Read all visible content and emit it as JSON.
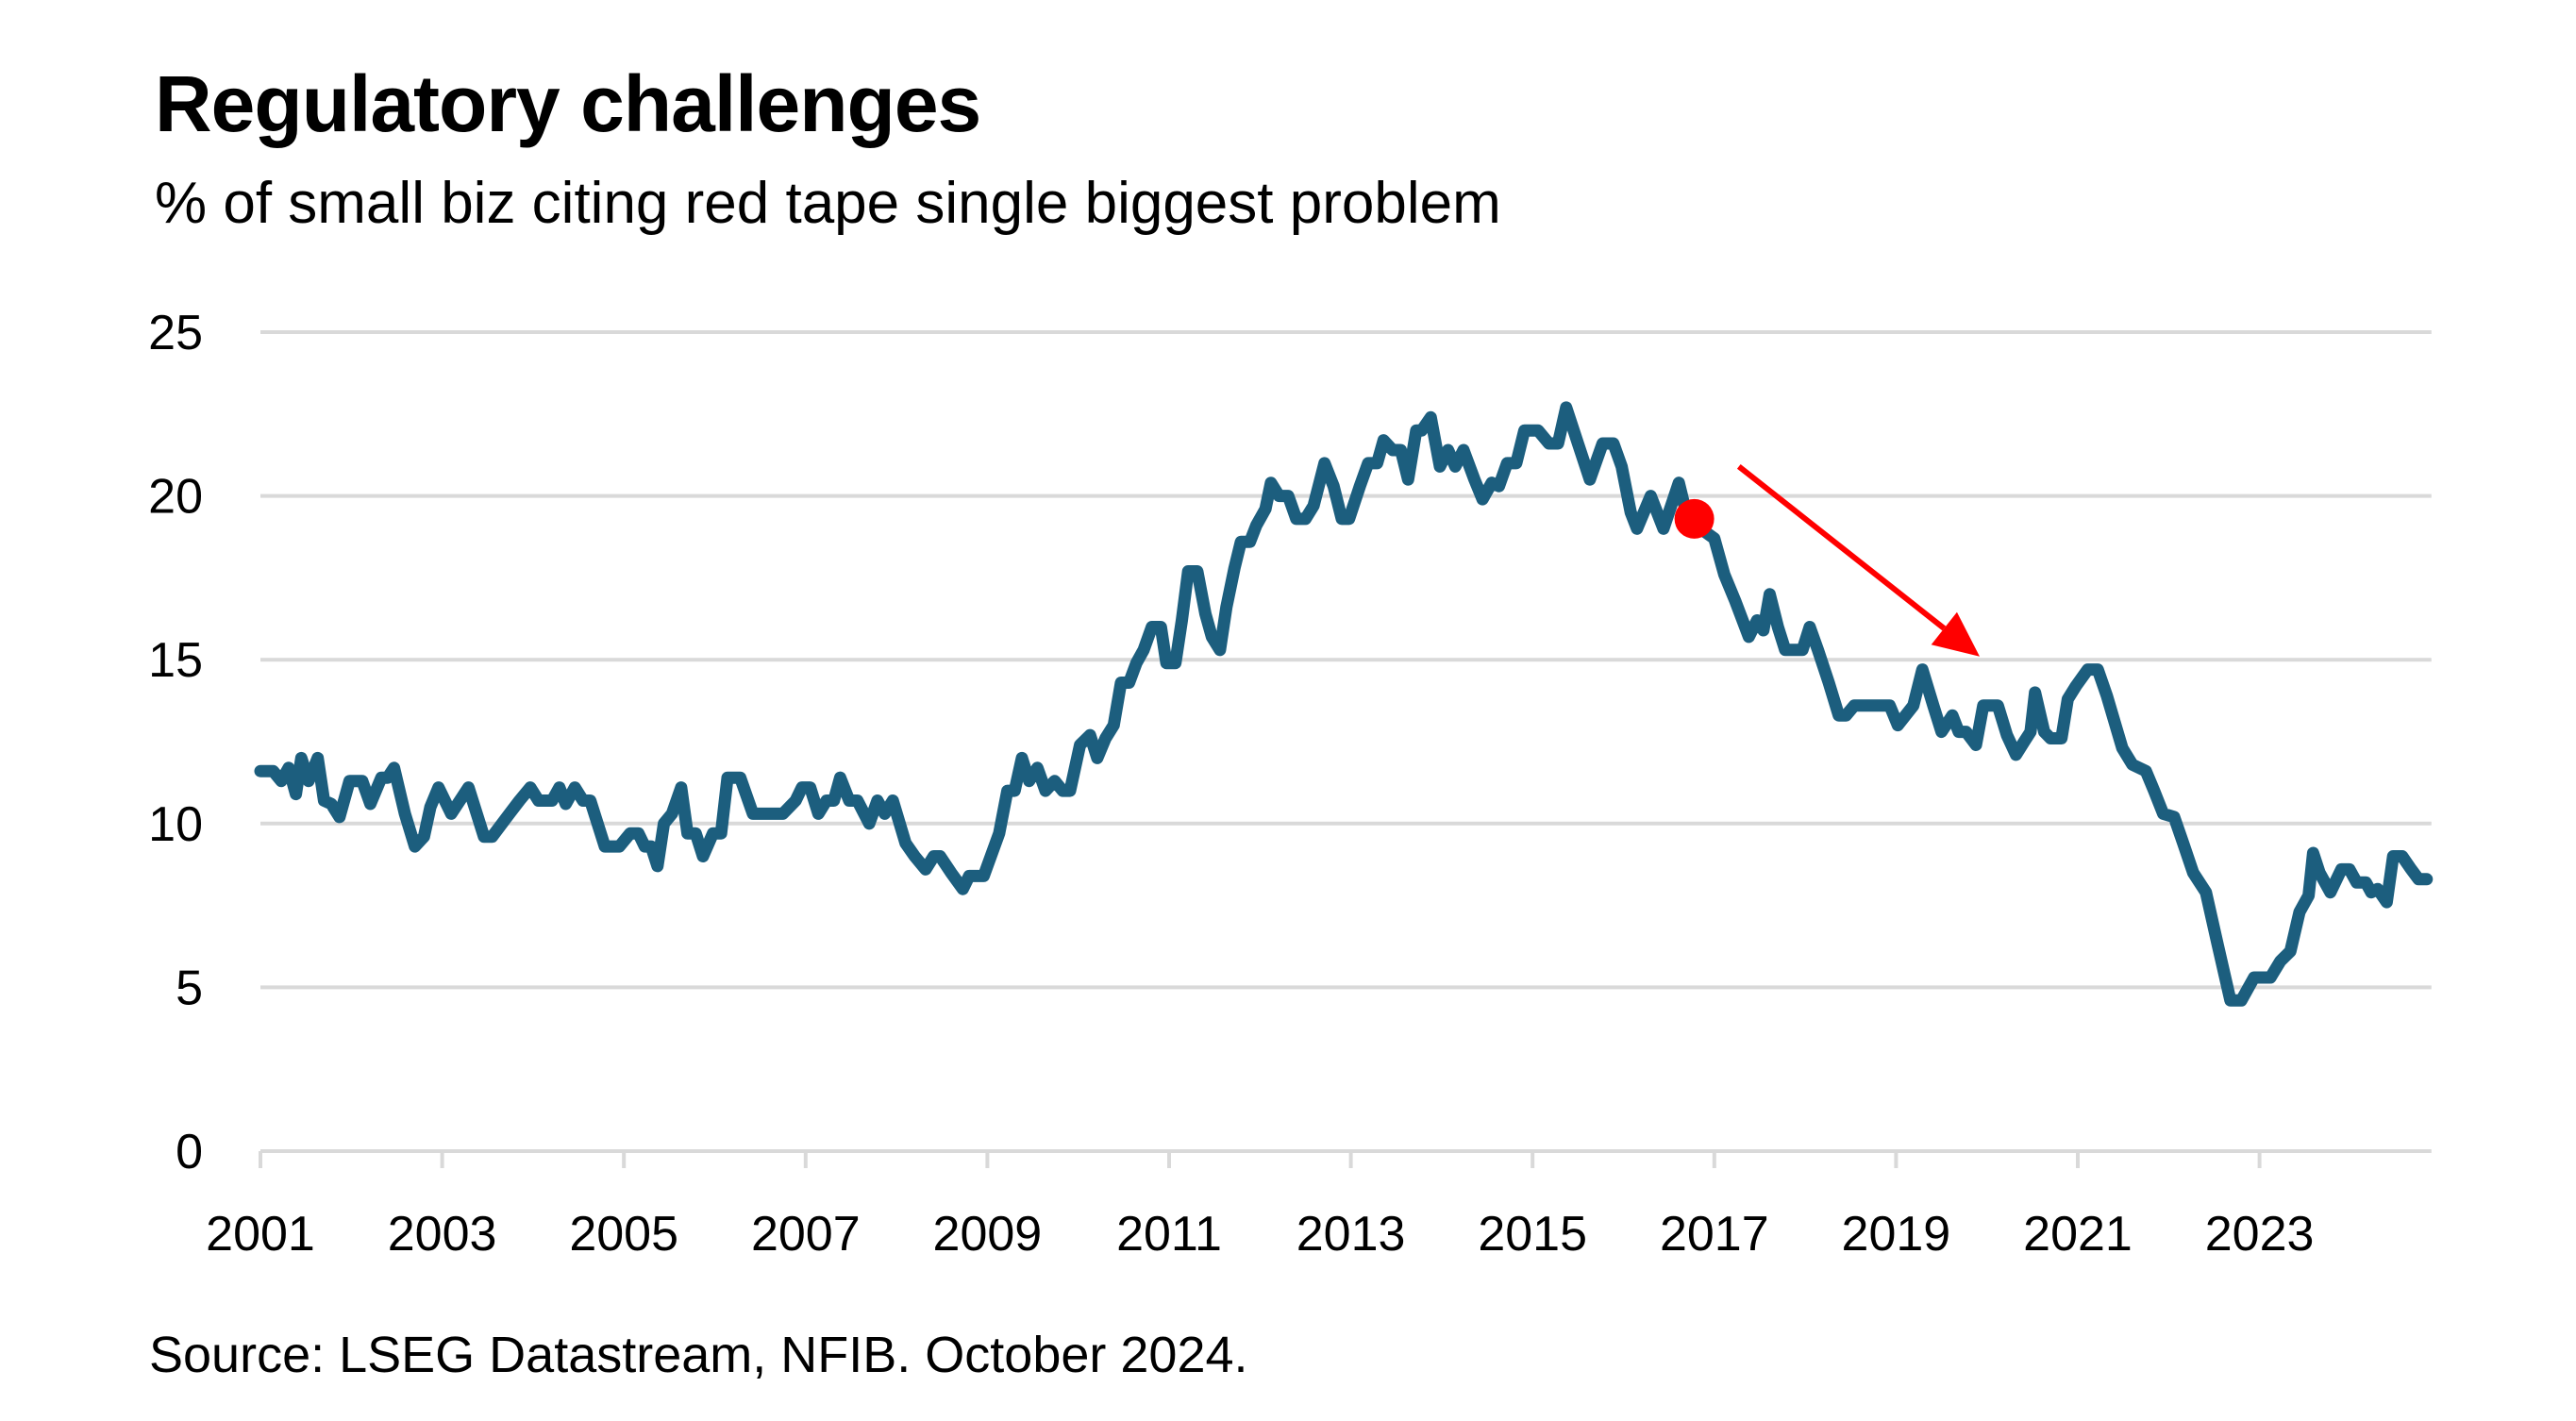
{
  "chart_data": {
    "type": "line",
    "title": "Regulatory challenges",
    "subtitle": "% of small biz citing red tape single biggest problem",
    "source": "Source: LSEG Datastream, NFIB. October 2024.",
    "xlabel": "",
    "ylabel": "",
    "xlim": [
      2001,
      2024.85
    ],
    "ylim": [
      0,
      25
    ],
    "yticks": [
      0,
      5,
      10,
      15,
      20,
      25
    ],
    "xticks": [
      2001,
      2003,
      2005,
      2007,
      2009,
      2011,
      2013,
      2015,
      2017,
      2019,
      2021,
      2023
    ],
    "xtick_labels": [
      "2001",
      "2003",
      "2005",
      "2007",
      "2009",
      "2011",
      "2013",
      "2015",
      "2017",
      "2019",
      "2021",
      "2023"
    ],
    "ytick_labels": [
      "0",
      "5",
      "10",
      "15",
      "20",
      "25"
    ],
    "grid": "horizontal",
    "colors": {
      "line": "#1c5e7e",
      "grid": "#d9d9d9",
      "annotation": "#ff0000"
    },
    "series": [
      {
        "name": "Red tape single biggest problem (%)",
        "points": [
          [
            2001.0,
            11.6
          ],
          [
            2001.14,
            11.6
          ],
          [
            2001.23,
            11.3
          ],
          [
            2001.31,
            11.7
          ],
          [
            2001.39,
            10.9
          ],
          [
            2001.45,
            12.0
          ],
          [
            2001.53,
            11.3
          ],
          [
            2001.63,
            12.0
          ],
          [
            2001.7,
            10.7
          ],
          [
            2001.78,
            10.6
          ],
          [
            2001.87,
            10.2
          ],
          [
            2001.98,
            11.3
          ],
          [
            2002.12,
            11.3
          ],
          [
            2002.21,
            10.6
          ],
          [
            2002.33,
            11.4
          ],
          [
            2002.4,
            11.4
          ],
          [
            2002.47,
            11.7
          ],
          [
            2002.59,
            10.3
          ],
          [
            2002.7,
            9.3
          ],
          [
            2002.8,
            9.6
          ],
          [
            2002.87,
            10.5
          ],
          [
            2002.96,
            11.1
          ],
          [
            2003.1,
            10.3
          ],
          [
            2003.29,
            11.1
          ],
          [
            2003.46,
            9.6
          ],
          [
            2003.55,
            9.6
          ],
          [
            2003.74,
            10.3
          ],
          [
            2003.85,
            10.7
          ],
          [
            2003.97,
            11.1
          ],
          [
            2004.06,
            10.7
          ],
          [
            2004.21,
            10.7
          ],
          [
            2004.29,
            11.1
          ],
          [
            2004.36,
            10.6
          ],
          [
            2004.46,
            11.1
          ],
          [
            2004.55,
            10.7
          ],
          [
            2004.63,
            10.7
          ],
          [
            2004.79,
            9.3
          ],
          [
            2004.95,
            9.3
          ],
          [
            2005.07,
            9.7
          ],
          [
            2005.16,
            9.7
          ],
          [
            2005.23,
            9.3
          ],
          [
            2005.3,
            9.3
          ],
          [
            2005.37,
            8.7
          ],
          [
            2005.44,
            10.0
          ],
          [
            2005.53,
            10.3
          ],
          [
            2005.63,
            11.1
          ],
          [
            2005.7,
            9.7
          ],
          [
            2005.79,
            9.7
          ],
          [
            2005.87,
            9.0
          ],
          [
            2005.98,
            9.7
          ],
          [
            2006.07,
            9.7
          ],
          [
            2006.14,
            11.4
          ],
          [
            2006.28,
            11.4
          ],
          [
            2006.42,
            10.3
          ],
          [
            2006.75,
            10.3
          ],
          [
            2006.89,
            10.7
          ],
          [
            2006.96,
            11.1
          ],
          [
            2007.05,
            11.1
          ],
          [
            2007.14,
            10.3
          ],
          [
            2007.23,
            10.7
          ],
          [
            2007.31,
            10.7
          ],
          [
            2007.38,
            11.4
          ],
          [
            2007.48,
            10.7
          ],
          [
            2007.57,
            10.7
          ],
          [
            2007.7,
            10.0
          ],
          [
            2007.79,
            10.7
          ],
          [
            2007.87,
            10.3
          ],
          [
            2007.96,
            10.7
          ],
          [
            2008.1,
            9.4
          ],
          [
            2008.2,
            9.0
          ],
          [
            2008.32,
            8.6
          ],
          [
            2008.41,
            9.0
          ],
          [
            2008.48,
            9.0
          ],
          [
            2008.6,
            8.5
          ],
          [
            2008.73,
            8.0
          ],
          [
            2008.8,
            8.4
          ],
          [
            2008.96,
            8.4
          ],
          [
            2009.13,
            9.7
          ],
          [
            2009.22,
            11.0
          ],
          [
            2009.3,
            11.0
          ],
          [
            2009.38,
            12.0
          ],
          [
            2009.46,
            11.3
          ],
          [
            2009.55,
            11.7
          ],
          [
            2009.64,
            11.0
          ],
          [
            2009.74,
            11.3
          ],
          [
            2009.83,
            11.0
          ],
          [
            2009.91,
            11.0
          ],
          [
            2010.02,
            12.4
          ],
          [
            2010.13,
            12.7
          ],
          [
            2010.21,
            12.0
          ],
          [
            2010.3,
            12.6
          ],
          [
            2010.39,
            13.0
          ],
          [
            2010.47,
            14.3
          ],
          [
            2010.56,
            14.3
          ],
          [
            2010.64,
            14.9
          ],
          [
            2010.72,
            15.3
          ],
          [
            2010.81,
            16.0
          ],
          [
            2010.91,
            16.0
          ],
          [
            2010.97,
            14.9
          ],
          [
            2011.07,
            14.9
          ],
          [
            2011.14,
            16.2
          ],
          [
            2011.21,
            17.7
          ],
          [
            2011.31,
            17.7
          ],
          [
            2011.4,
            16.4
          ],
          [
            2011.47,
            15.7
          ],
          [
            2011.56,
            15.3
          ],
          [
            2011.63,
            16.6
          ],
          [
            2011.72,
            17.8
          ],
          [
            2011.79,
            18.6
          ],
          [
            2011.89,
            18.6
          ],
          [
            2011.96,
            19.1
          ],
          [
            2012.06,
            19.6
          ],
          [
            2012.12,
            20.4
          ],
          [
            2012.21,
            20.0
          ],
          [
            2012.31,
            20.0
          ],
          [
            2012.4,
            19.3
          ],
          [
            2012.5,
            19.3
          ],
          [
            2012.59,
            19.7
          ],
          [
            2012.71,
            21.0
          ],
          [
            2012.81,
            20.3
          ],
          [
            2012.9,
            19.3
          ],
          [
            2012.98,
            19.3
          ],
          [
            2013.1,
            20.3
          ],
          [
            2013.19,
            21.0
          ],
          [
            2013.29,
            21.0
          ],
          [
            2013.36,
            21.7
          ],
          [
            2013.46,
            21.4
          ],
          [
            2013.55,
            21.4
          ],
          [
            2013.63,
            20.5
          ],
          [
            2013.72,
            22.0
          ],
          [
            2013.78,
            22.0
          ],
          [
            2013.88,
            22.4
          ],
          [
            2013.98,
            20.9
          ],
          [
            2014.07,
            21.4
          ],
          [
            2014.15,
            20.9
          ],
          [
            2014.24,
            21.4
          ],
          [
            2014.36,
            20.5
          ],
          [
            2014.45,
            19.9
          ],
          [
            2014.55,
            20.4
          ],
          [
            2014.63,
            20.3
          ],
          [
            2014.72,
            21.0
          ],
          [
            2014.82,
            21.0
          ],
          [
            2014.91,
            22.0
          ],
          [
            2015.06,
            22.0
          ],
          [
            2015.18,
            21.6
          ],
          [
            2015.28,
            21.6
          ],
          [
            2015.37,
            22.7
          ],
          [
            2015.5,
            21.6
          ],
          [
            2015.63,
            20.5
          ],
          [
            2015.77,
            21.6
          ],
          [
            2015.89,
            21.6
          ],
          [
            2015.98,
            20.9
          ],
          [
            2016.08,
            19.5
          ],
          [
            2016.15,
            19.0
          ],
          [
            2016.3,
            20.0
          ],
          [
            2016.44,
            19.0
          ],
          [
            2016.61,
            20.4
          ],
          [
            2016.68,
            19.6
          ],
          [
            2016.78,
            19.3
          ],
          [
            2016.9,
            18.9
          ],
          [
            2017.0,
            18.7
          ],
          [
            2017.11,
            17.6
          ],
          [
            2017.23,
            16.8
          ],
          [
            2017.38,
            15.7
          ],
          [
            2017.47,
            16.2
          ],
          [
            2017.54,
            15.9
          ],
          [
            2017.61,
            17.0
          ],
          [
            2017.7,
            16.0
          ],
          [
            2017.78,
            15.3
          ],
          [
            2017.97,
            15.3
          ],
          [
            2018.05,
            16.0
          ],
          [
            2018.14,
            15.3
          ],
          [
            2018.26,
            14.3
          ],
          [
            2018.37,
            13.3
          ],
          [
            2018.45,
            13.3
          ],
          [
            2018.54,
            13.6
          ],
          [
            2018.93,
            13.6
          ],
          [
            2019.02,
            13.0
          ],
          [
            2019.19,
            13.6
          ],
          [
            2019.29,
            14.7
          ],
          [
            2019.41,
            13.6
          ],
          [
            2019.5,
            12.8
          ],
          [
            2019.62,
            13.3
          ],
          [
            2019.69,
            12.8
          ],
          [
            2019.77,
            12.8
          ],
          [
            2019.88,
            12.4
          ],
          [
            2019.96,
            13.6
          ],
          [
            2020.12,
            13.6
          ],
          [
            2020.22,
            12.7
          ],
          [
            2020.32,
            12.1
          ],
          [
            2020.41,
            12.5
          ],
          [
            2020.48,
            12.8
          ],
          [
            2020.53,
            14.0
          ],
          [
            2020.63,
            12.8
          ],
          [
            2020.7,
            12.6
          ],
          [
            2020.82,
            12.6
          ],
          [
            2020.89,
            13.8
          ],
          [
            2020.98,
            14.2
          ],
          [
            2021.11,
            14.7
          ],
          [
            2021.22,
            14.7
          ],
          [
            2021.32,
            13.9
          ],
          [
            2021.49,
            12.3
          ],
          [
            2021.6,
            11.8
          ],
          [
            2021.75,
            11.6
          ],
          [
            2021.84,
            11.0
          ],
          [
            2021.94,
            10.3
          ],
          [
            2022.06,
            10.2
          ],
          [
            2022.16,
            9.4
          ],
          [
            2022.27,
            8.5
          ],
          [
            2022.41,
            7.9
          ],
          [
            2022.54,
            6.3
          ],
          [
            2022.68,
            4.6
          ],
          [
            2022.8,
            4.6
          ],
          [
            2022.94,
            5.3
          ],
          [
            2023.12,
            5.3
          ],
          [
            2023.23,
            5.8
          ],
          [
            2023.34,
            6.1
          ],
          [
            2023.44,
            7.3
          ],
          [
            2023.54,
            7.8
          ],
          [
            2023.59,
            9.1
          ],
          [
            2023.66,
            8.5
          ],
          [
            2023.78,
            7.9
          ],
          [
            2023.9,
            8.6
          ],
          [
            2023.99,
            8.6
          ],
          [
            2024.07,
            8.2
          ],
          [
            2024.17,
            8.2
          ],
          [
            2024.23,
            7.9
          ],
          [
            2024.3,
            8.0
          ],
          [
            2024.4,
            7.6
          ],
          [
            2024.47,
            9.0
          ],
          [
            2024.57,
            9.0
          ],
          [
            2024.67,
            8.6
          ],
          [
            2024.75,
            8.3
          ],
          [
            2024.84,
            8.3
          ]
        ]
      }
    ],
    "annotations": [
      {
        "type": "marker",
        "x": 2016.78,
        "y": 19.3
      },
      {
        "type": "arrow",
        "from": [
          2017.27,
          20.9
        ],
        "to": [
          2019.92,
          15.1
        ]
      }
    ]
  }
}
